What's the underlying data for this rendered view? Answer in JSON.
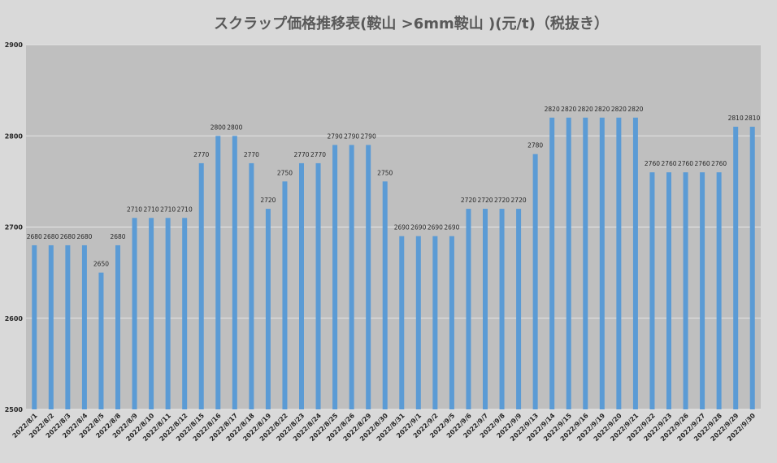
{
  "chart_data": {
    "type": "bar",
    "title": "スクラップ価格推移表(鞍山 >6mm鞍山 )(元/t)（税抜き）",
    "xlabel": "",
    "ylabel": "",
    "ylim": [
      2500,
      2900
    ],
    "yticks": [
      2500,
      2600,
      2700,
      2800,
      2900
    ],
    "grid": true,
    "series_color": "#5b9bd5",
    "plot_bg": "#bfbfbf",
    "categories": [
      "2022/8/1",
      "2022/8/2",
      "2022/8/3",
      "2022/8/4",
      "2022/8/5",
      "2022/8/8",
      "2022/8/9",
      "2022/8/10",
      "2022/8/11",
      "2022/8/12",
      "2022/8/15",
      "2022/8/16",
      "2022/8/17",
      "2022/8/18",
      "2022/8/19",
      "2022/8/22",
      "2022/8/23",
      "2022/8/24",
      "2022/8/25",
      "2022/8/26",
      "2022/8/29",
      "2022/8/30",
      "2022/8/31",
      "2022/9/1",
      "2022/9/2",
      "2022/9/5",
      "2022/9/6",
      "2022/9/7",
      "2022/9/8",
      "2022/9/9",
      "2022/9/13",
      "2022/9/14",
      "2022/9/15",
      "2022/9/16",
      "2022/9/19",
      "2022/9/20",
      "2022/9/21",
      "2022/9/22",
      "2022/9/23",
      "2022/9/26",
      "2022/9/27",
      "2022/9/28",
      "2022/9/29",
      "2022/9/30"
    ],
    "values": [
      2680,
      2680,
      2680,
      2680,
      2650,
      2680,
      2710,
      2710,
      2710,
      2710,
      2770,
      2800,
      2800,
      2770,
      2720,
      2750,
      2770,
      2770,
      2790,
      2790,
      2790,
      2750,
      2690,
      2690,
      2690,
      2690,
      2720,
      2720,
      2720,
      2720,
      2780,
      2820,
      2820,
      2820,
      2820,
      2820,
      2820,
      2760,
      2760,
      2760,
      2760,
      2760,
      2810,
      2810
    ]
  }
}
